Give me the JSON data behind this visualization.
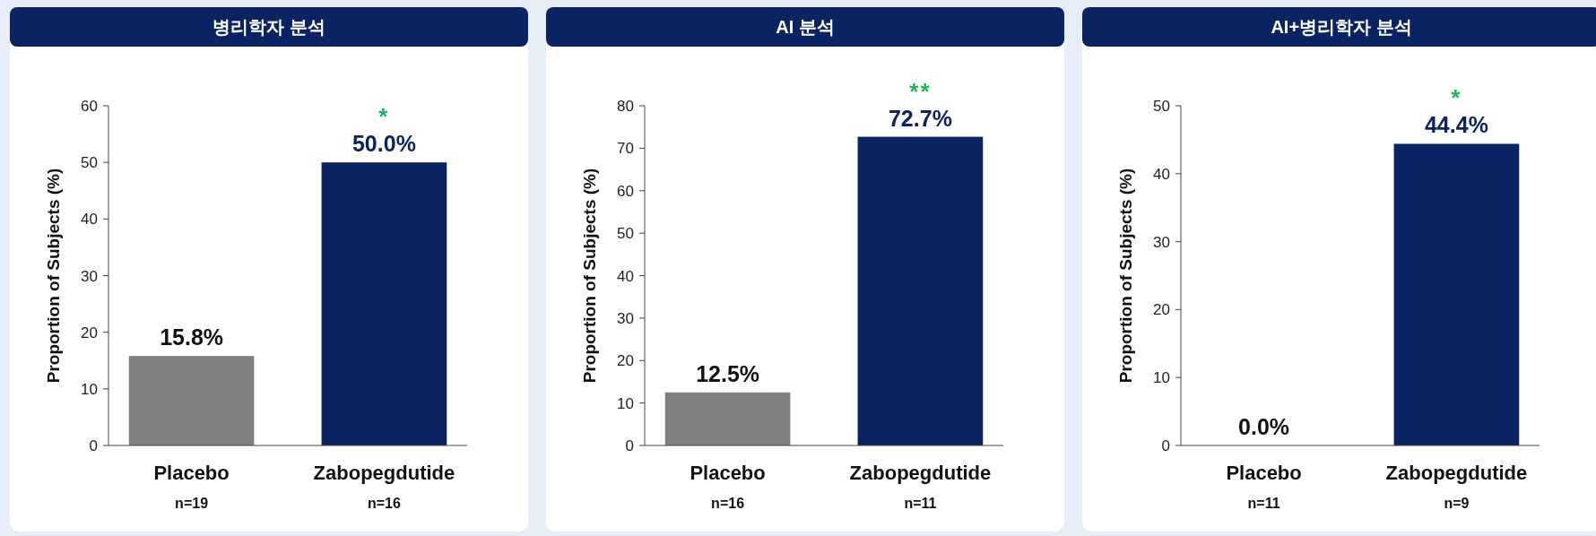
{
  "chart_data": [
    {
      "type": "bar",
      "title": "병리학자 분석",
      "ylabel": "Proportion of Subjects (%)",
      "categories": [
        "Placebo\nn=19",
        "Zabopegdutide\nn=16"
      ],
      "values": [
        15.8,
        50.0
      ],
      "colors": [
        "#808080",
        "#0a2463"
      ],
      "value_labels": [
        "15.8%",
        "50.0%"
      ],
      "ylim": [
        0,
        60
      ],
      "yticks": [
        0,
        10,
        20,
        30,
        40,
        50,
        60
      ],
      "annotations": [
        {
          "text": "*",
          "x": "Zabopegdutide\nn=16",
          "y": 50.0
        }
      ]
    },
    {
      "type": "bar",
      "title": "AI 분석",
      "ylabel": "Proportion of Subjects (%)",
      "categories": [
        "Placebo\nn=16",
        "Zabopegdutide\nn=11"
      ],
      "values": [
        12.5,
        72.7
      ],
      "colors": [
        "#808080",
        "#0a2463"
      ],
      "value_labels": [
        "12.5%",
        "72.7%"
      ],
      "ylim": [
        0,
        80
      ],
      "yticks": [
        0,
        10,
        20,
        30,
        40,
        50,
        60,
        70,
        80
      ],
      "annotations": [
        {
          "text": "**",
          "x": "Zabopegdutide\nn=11",
          "y": 72.7
        }
      ]
    },
    {
      "type": "bar",
      "title": "AI+병리학자 분석",
      "ylabel": "Proportion of Subjects (%)",
      "categories": [
        "Placebo\nn=11",
        "Zabopegdutide\nn=9"
      ],
      "values": [
        0.0,
        44.4
      ],
      "colors": [
        "#808080",
        "#0a2463"
      ],
      "value_labels": [
        "0.0%",
        "44.4%"
      ],
      "ylim": [
        0,
        50
      ],
      "yticks": [
        0,
        10,
        20,
        30,
        40,
        50
      ],
      "annotations": [
        {
          "text": "*",
          "x": "Zabopegdutide\nn=9",
          "y": 44.4
        }
      ]
    }
  ]
}
